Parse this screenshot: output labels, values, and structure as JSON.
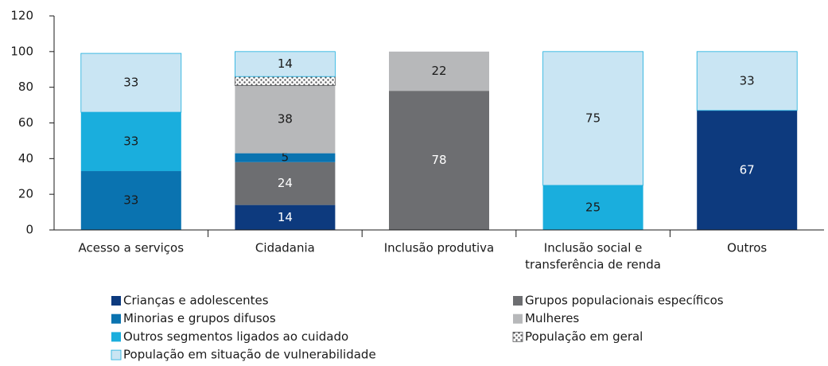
{
  "chart_data": {
    "type": "stacked_bar",
    "categories": [
      "Acesso a serviços",
      "Cidadania",
      "Inclusão produtiva",
      [
        "Inclusão social e",
        "transferência de renda"
      ],
      "Outros"
    ],
    "ylim": [
      0,
      120
    ],
    "yticks": [
      0,
      20,
      40,
      60,
      80,
      100,
      120
    ],
    "legend": "bottom",
    "series": [
      {
        "name": "Crianças e adolescentes",
        "color": "#0d3a7e",
        "label_color": "#ffffff",
        "values": [
          null,
          14,
          null,
          null,
          67
        ]
      },
      {
        "name": "Grupos populacionais específicos",
        "color": "#6d6e71",
        "label_color": "#ffffff",
        "values": [
          null,
          24,
          78,
          null,
          null
        ]
      },
      {
        "name": "Minorias e grupos difusos",
        "color": "#0a73b0",
        "label_color": "#1a1a1a",
        "values": [
          33,
          5,
          null,
          null,
          null
        ]
      },
      {
        "name": "Mulheres",
        "color": "#b7b8ba",
        "label_color": "#1a1a1a",
        "values": [
          null,
          38,
          22,
          null,
          null
        ]
      },
      {
        "name": "Outros segmentos ligados ao cuidado",
        "color": "#1aaedd",
        "label_color": "#1a1a1a",
        "values": [
          33,
          null,
          null,
          25,
          null
        ]
      },
      {
        "name": "População em geral",
        "color": "#58595b",
        "pattern": "dots",
        "labels": false,
        "values": [
          null,
          5,
          null,
          null,
          null
        ]
      },
      {
        "name": "População em situação de vulnerabilidade",
        "color": "#c9e5f3",
        "label_color": "#1a1a1a",
        "values": [
          33,
          14,
          null,
          75,
          33
        ]
      }
    ]
  }
}
